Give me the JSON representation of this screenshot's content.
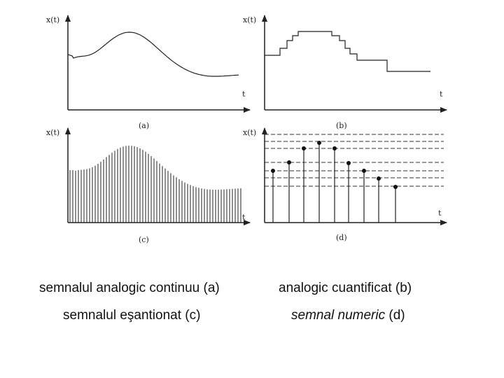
{
  "panels": {
    "a": {
      "ylabel": "x(t)",
      "xlabel": "t",
      "caption": "(a)"
    },
    "b": {
      "ylabel": "x(t)",
      "xlabel": "t",
      "caption": "(b)"
    },
    "c": {
      "ylabel": "x(t)",
      "xlabel": "t",
      "caption": "(c)"
    },
    "d": {
      "ylabel": "x(t)",
      "xlabel": "t",
      "caption": "(d)"
    }
  },
  "captions": {
    "a_text": "semnalul analogic continuu",
    "a_ref": " (a)",
    "b_text": "analogic cuantificat",
    "b_ref": " (b)",
    "c_text": "semnalul eşantionat",
    "c_ref": " (c)",
    "d_text": "semnal numeric",
    "d_ref": " (d)"
  },
  "colors": {
    "line": "#222222",
    "dashed": "#333333"
  }
}
